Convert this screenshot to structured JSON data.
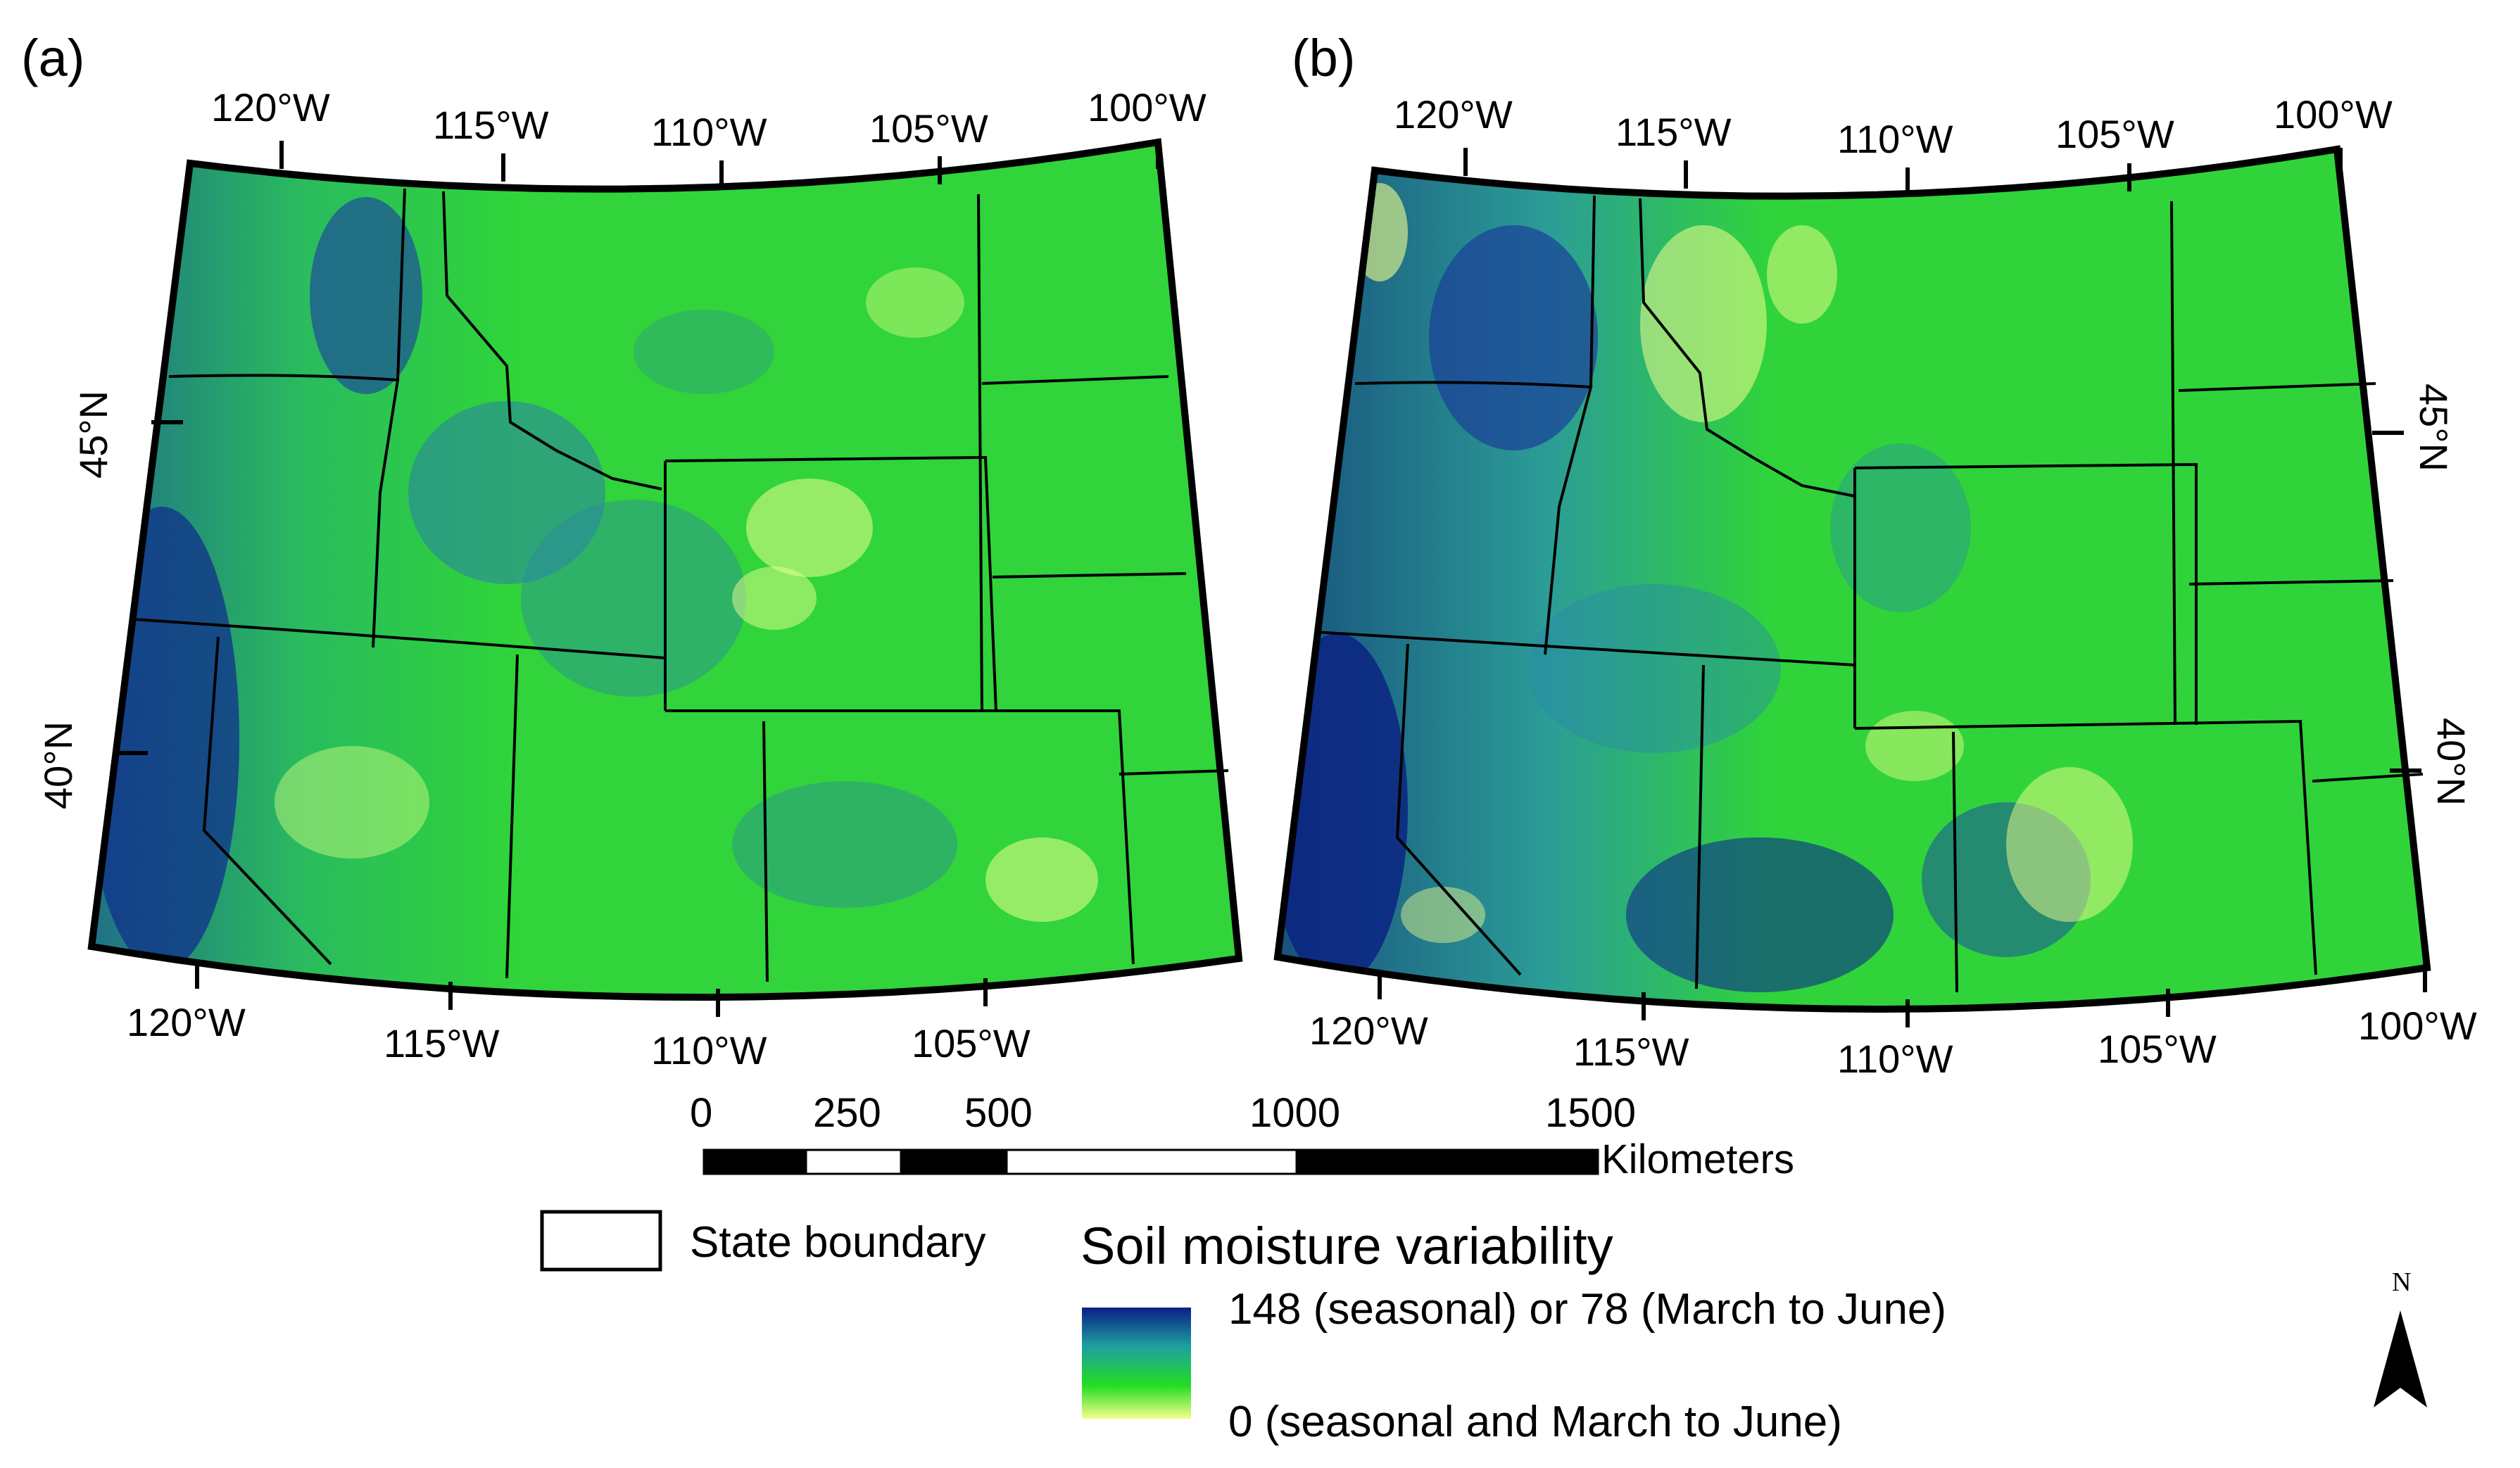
{
  "panels": [
    {
      "label": "(a)",
      "top_lon_labels": [
        "120°W",
        "115°W",
        "110°W",
        "105°W",
        "100°W"
      ],
      "bottom_lon_labels": [
        "120°W",
        "115°W",
        "110°W",
        "105°W"
      ],
      "lat_labels": [
        "45°N",
        "40°N"
      ]
    },
    {
      "label": "(b)",
      "top_lon_labels": [
        "120°W",
        "115°W",
        "110°W",
        "105°W",
        "100°W"
      ],
      "bottom_lon_labels": [
        "120°W",
        "115°W",
        "110°W",
        "105°W",
        "100°W"
      ],
      "lat_labels": [
        "45°N",
        "40°N"
      ]
    }
  ],
  "scale_bar": {
    "ticks": [
      "0",
      "250",
      "500",
      "1000",
      "1500"
    ],
    "unit": "Kilometers"
  },
  "legend": {
    "boundary_label": "State boundary",
    "title": "Soil moisture variability",
    "high_label": "148 (seasonal) or 78 (March to June)",
    "low_label": "0 (seasonal and March to June)",
    "colors": {
      "high": "#0b1f86",
      "mid": "#1ea0a0",
      "green": "#22dd22",
      "low": "#f2ff8a"
    }
  },
  "north_arrow": {
    "label": "N"
  }
}
